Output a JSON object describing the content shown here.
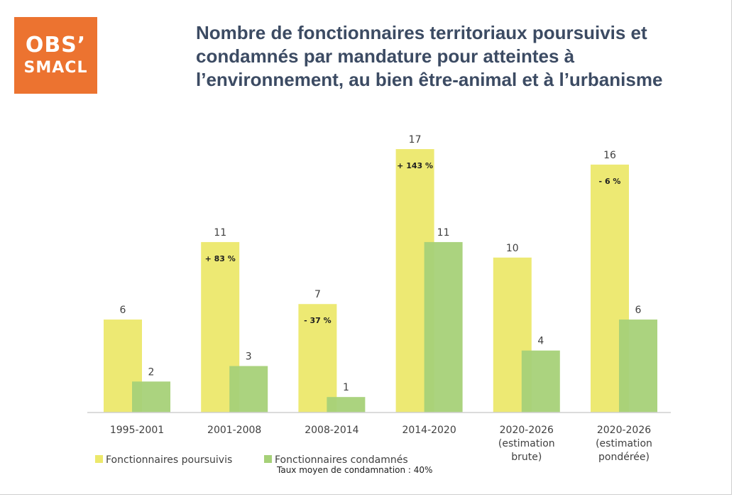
{
  "logo": {
    "line1": "OBS’",
    "line2": "SMACL"
  },
  "title": "Nombre de fonctionnaires territoriaux poursuivis et condamnés par mandature pour atteintes à l’environnement, au bien être-animal et à l’urbanisme",
  "footnote": "Taux moyen de condamnation : 40%",
  "colors": {
    "poursuivis": "#ece86b",
    "condamnes": "#a6d178",
    "logo": "#ec7330",
    "title": "#3c4b63"
  },
  "chart_data": {
    "type": "bar",
    "title": "Nombre de fonctionnaires territoriaux poursuivis et condamnés par mandature pour atteintes à l’environnement, au bien être-animal et à l’urbanisme",
    "categories": [
      [
        "1995-2001"
      ],
      [
        "2001-2008"
      ],
      [
        "2008-2014"
      ],
      [
        "2014-2020"
      ],
      [
        "2020-2026",
        "(estimation",
        "brute)"
      ],
      [
        "2020-2026",
        "(estimation",
        "pondérée)"
      ]
    ],
    "series": [
      {
        "name": "Fonctionnaires poursuivis",
        "values": [
          6,
          11,
          7,
          17,
          10,
          16
        ]
      },
      {
        "name": "Fonctionnaires condamnés",
        "values": [
          2,
          3,
          1,
          11,
          4,
          6
        ]
      }
    ],
    "annotations": [
      "",
      "+ 83 %",
      "- 37 %",
      "+ 143 %",
      "",
      "- 6 %"
    ],
    "ylim": [
      0,
      17
    ],
    "grid": false,
    "legend": "bottom-left"
  }
}
